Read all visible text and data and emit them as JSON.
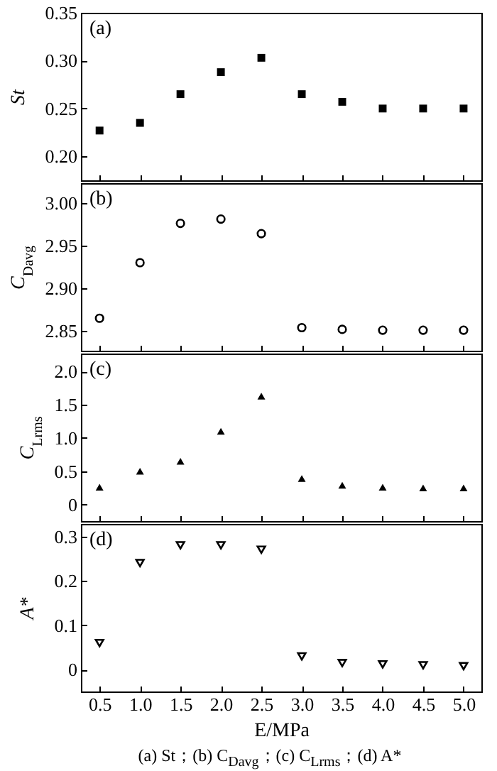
{
  "chart_data": [
    {
      "type": "scatter",
      "ylabel": "St",
      "annotations": [
        "(a)"
      ],
      "x": [
        0.5,
        1.0,
        1.5,
        2.0,
        2.5,
        3.0,
        3.5,
        4.0,
        4.5,
        5.0
      ],
      "xlim": [
        0.27,
        5.22
      ],
      "xticks": [
        0.5,
        1.0,
        1.5,
        2.0,
        2.5,
        3.0,
        3.5,
        4.0,
        4.5,
        5.0
      ],
      "ylim": [
        0.175,
        0.35
      ],
      "yticks": [
        {
          "value": 0.2,
          "label": "0.20"
        },
        {
          "value": 0.25,
          "label": "0.25"
        },
        {
          "value": 0.3,
          "label": "0.30"
        },
        {
          "value": 0.35,
          "label": "0.35"
        }
      ],
      "tick_labels": "y",
      "marker": "square",
      "grid": false,
      "series": [
        {
          "color": "#000000",
          "values": [
            0.227,
            0.235,
            0.265,
            0.288,
            0.303,
            0.265,
            0.257,
            0.25,
            0.25,
            0.25
          ]
        }
      ]
    },
    {
      "type": "scatter",
      "ylabel": "C$_{Davg}$",
      "annotations": [
        "(b)"
      ],
      "x": [
        0.5,
        1.0,
        1.5,
        2.0,
        2.5,
        3.0,
        3.5,
        4.0,
        4.5,
        5.0
      ],
      "xlim": [
        0.27,
        5.22
      ],
      "xticks": [
        0.5,
        1.0,
        1.5,
        2.0,
        2.5,
        3.0,
        3.5,
        4.0,
        4.5,
        5.0
      ],
      "ylim": [
        2.827,
        3.023
      ],
      "yticks": [
        {
          "value": 2.85,
          "label": "2.85"
        },
        {
          "value": 2.9,
          "label": "2.90"
        },
        {
          "value": 2.95,
          "label": "2.95"
        },
        {
          "value": 3.0,
          "label": "3.00"
        }
      ],
      "tick_labels": "y",
      "marker": "circle",
      "grid": false,
      "series": [
        {
          "color": "#000000",
          "values": [
            2.865,
            2.93,
            2.976,
            2.981,
            2.964,
            2.854,
            2.852,
            2.851,
            2.851,
            2.851
          ]
        }
      ]
    },
    {
      "type": "scatter",
      "ylabel": "C$_{Lrms}$",
      "annotations": [
        "(c)"
      ],
      "x": [
        0.5,
        1.0,
        1.5,
        2.0,
        2.5,
        3.0,
        3.5,
        4.0,
        4.5,
        5.0
      ],
      "xlim": [
        0.27,
        5.22
      ],
      "xticks": [
        0.5,
        1.0,
        1.5,
        2.0,
        2.5,
        3.0,
        3.5,
        4.0,
        4.5,
        5.0
      ],
      "ylim": [
        -0.25,
        2.27
      ],
      "yticks": [
        0,
        {
          "value": 0.5,
          "label": "0.5"
        },
        {
          "value": 1.0,
          "label": "1.0"
        },
        {
          "value": 1.5,
          "label": "1.5"
        },
        {
          "value": 2.0,
          "label": "2.0"
        }
      ],
      "tick_labels": "y",
      "marker": "triangle",
      "grid": false,
      "series": [
        {
          "color": "#000000",
          "values": [
            0.26,
            0.5,
            0.65,
            1.1,
            1.63,
            0.39,
            0.29,
            0.26,
            0.25,
            0.25
          ]
        }
      ]
    },
    {
      "type": "scatter",
      "ylabel": "A*",
      "xlabel": "E/MPa",
      "annotations": [
        "(d)",
        "(a) St；(b) C$_{Davg}$；(c) C$_{Lrms}$；(d) A*"
      ],
      "x": [
        0.5,
        1.0,
        1.5,
        2.0,
        2.5,
        3.0,
        3.5,
        4.0,
        4.5,
        5.0
      ],
      "xlim": [
        0.27,
        5.22
      ],
      "xticks": [
        {
          "value": 0.5,
          "label": "0.5"
        },
        {
          "value": 1.0,
          "label": "1.0"
        },
        {
          "value": 1.5,
          "label": "1.5"
        },
        {
          "value": 2.0,
          "label": "2.0"
        },
        {
          "value": 2.5,
          "label": "2.5"
        },
        {
          "value": 3.0,
          "label": "3.0"
        },
        {
          "value": 3.5,
          "label": "3.5"
        },
        {
          "value": 4.0,
          "label": "4.0"
        },
        {
          "value": 4.5,
          "label": "4.5"
        },
        {
          "value": 5.0,
          "label": "5.0"
        }
      ],
      "ylim": [
        -0.049,
        0.328
      ],
      "yticks": [
        0,
        0.1,
        0.2,
        0.3
      ],
      "marker": "triangle-down",
      "grid": false,
      "series": [
        {
          "color": "#000000",
          "values": [
            0.06,
            0.24,
            0.28,
            0.28,
            0.27,
            0.03,
            0.015,
            0.012,
            0.01,
            0.008
          ]
        }
      ]
    }
  ]
}
